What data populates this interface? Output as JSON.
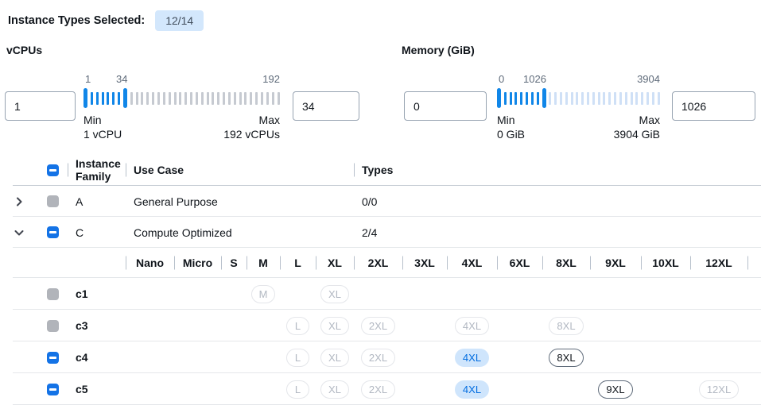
{
  "header": {
    "label": "Instance Types Selected:",
    "badge": "12/14"
  },
  "filters": {
    "vcpus": {
      "title": "vCPUs",
      "min_value": "1",
      "max_value": "34",
      "scale_labels": [
        "1",
        "34",
        "192"
      ],
      "min_label": "Min",
      "min_sub": "1 vCPU",
      "max_label": "Max",
      "max_sub": "192 vCPUs"
    },
    "memory": {
      "title": "Memory (GiB)",
      "min_value": "0",
      "max_value": "1026",
      "scale_labels": [
        "0",
        "1026",
        "3904"
      ],
      "min_label": "Min",
      "min_sub": "0 GiB",
      "max_label": "Max",
      "max_sub": "3904 GiB"
    }
  },
  "table": {
    "header": {
      "select_all_state": "indeterminate",
      "family": "Instance Family",
      "use_case": "Use Case",
      "types": "Types"
    },
    "size_columns": [
      "Nano",
      "Micro",
      "S",
      "M",
      "L",
      "XL",
      "2XL",
      "3XL",
      "4XL",
      "6XL",
      "8XL",
      "9XL",
      "10XL",
      "12XL"
    ],
    "families": [
      {
        "name": "A",
        "use_case": "General Purpose",
        "types": "0/0",
        "expanded": false,
        "checkbox": "disabled",
        "instances": []
      },
      {
        "name": "C",
        "use_case": "Compute Optimized",
        "types": "2/4",
        "expanded": true,
        "checkbox": "indeterminate",
        "instances": [
          {
            "name": "c1",
            "checkbox": "disabled",
            "sizes": {
              "M": "disabled",
              "XL": "disabled"
            }
          },
          {
            "name": "c3",
            "checkbox": "disabled",
            "sizes": {
              "L": "disabled",
              "XL": "disabled",
              "2XL": "disabled",
              "4XL": "disabled",
              "8XL": "disabled"
            }
          },
          {
            "name": "c4",
            "checkbox": "indeterminate",
            "sizes": {
              "L": "disabled",
              "XL": "disabled",
              "2XL": "disabled",
              "4XL": "selected",
              "8XL": "unselected"
            }
          },
          {
            "name": "c5",
            "checkbox": "indeterminate",
            "sizes": {
              "L": "disabled",
              "XL": "disabled",
              "2XL": "disabled",
              "4XL": "selected",
              "9XL": "unselected",
              "12XL": "disabled"
            }
          }
        ]
      }
    ]
  },
  "icons": {
    "expand": "chevron-right-icon",
    "collapse": "chevron-down-icon",
    "indeterminate_checkbox": "minus-icon"
  },
  "colors": {
    "accent_blue": "#1086e8",
    "checkbox_blue": "#1473e6",
    "badge_bg": "#d3e7fc",
    "selected_pill_bg": "#cfe5fc",
    "selected_pill_text": "#006ce0",
    "disabled_gray": "#b1b4ba",
    "tick_inactive_vcpu": "#c6cad1",
    "tick_inactive_memory": "#cfe0f6",
    "muted_label": "#5f6b7a"
  }
}
